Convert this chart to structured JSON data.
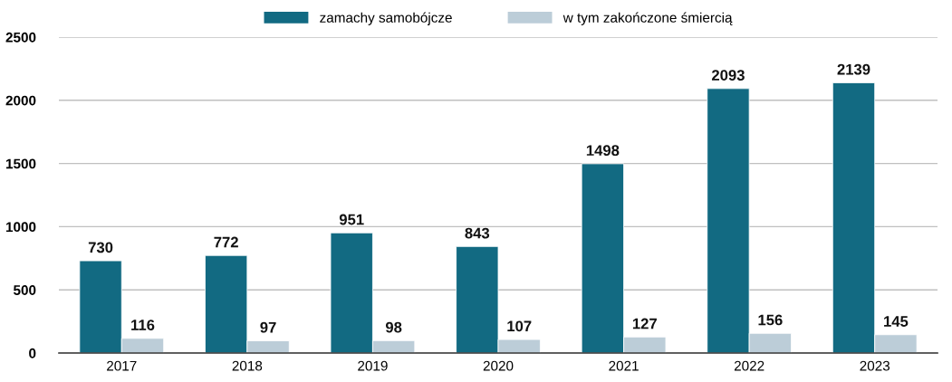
{
  "chart_data": {
    "type": "bar",
    "categories": [
      "2017",
      "2018",
      "2019",
      "2020",
      "2021",
      "2022",
      "2023"
    ],
    "series": [
      {
        "name": "zamachy samobójcze",
        "color": "#126a82",
        "values": [
          730,
          772,
          951,
          843,
          1498,
          2093,
          2139
        ]
      },
      {
        "name": "w tym zakończone śmiercią",
        "color": "#bccdd8",
        "values": [
          116,
          97,
          98,
          107,
          127,
          156,
          145
        ]
      }
    ],
    "ylim": [
      0,
      2500
    ],
    "yticks": [
      0,
      500,
      1000,
      1500,
      2000,
      2500
    ],
    "grid": "y",
    "legend": "top",
    "data_labels": true
  }
}
